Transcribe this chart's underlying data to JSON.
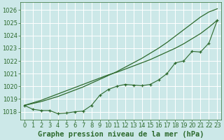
{
  "title": "Graphe pression niveau de la mer (hPa)",
  "bg_color": "#cce8e8",
  "grid_color": "#ffffff",
  "line_color": "#2d6a2d",
  "xlim": [
    -0.5,
    23.5
  ],
  "ylim": [
    1017.4,
    1026.6
  ],
  "xticks": [
    0,
    1,
    2,
    3,
    4,
    5,
    6,
    7,
    8,
    9,
    10,
    11,
    12,
    13,
    14,
    15,
    16,
    17,
    18,
    19,
    20,
    21,
    22,
    23
  ],
  "yticks": [
    1018,
    1019,
    1020,
    1021,
    1022,
    1023,
    1024,
    1025,
    1026
  ],
  "series_smooth1": [
    1018.5,
    1018.7,
    1018.9,
    1019.15,
    1019.4,
    1019.65,
    1019.9,
    1020.15,
    1020.4,
    1020.65,
    1020.9,
    1021.1,
    1021.35,
    1021.6,
    1021.85,
    1022.1,
    1022.4,
    1022.7,
    1023.0,
    1023.35,
    1023.75,
    1024.15,
    1024.65,
    1025.2
  ],
  "series_smooth2": [
    1018.5,
    1018.65,
    1018.8,
    1019.0,
    1019.2,
    1019.45,
    1019.7,
    1019.95,
    1020.25,
    1020.55,
    1020.85,
    1021.15,
    1021.5,
    1021.85,
    1022.2,
    1022.6,
    1023.0,
    1023.45,
    1023.95,
    1024.45,
    1024.95,
    1025.45,
    1025.85,
    1026.1
  ],
  "series_marked": [
    1018.5,
    1018.2,
    1018.1,
    1018.1,
    1017.85,
    1017.9,
    1018.0,
    1018.05,
    1018.5,
    1019.3,
    1019.75,
    1020.0,
    1020.15,
    1020.1,
    1020.05,
    1020.15,
    1020.5,
    1021.0,
    1021.85,
    1022.0,
    1022.75,
    1022.7,
    1023.4,
    1025.2
  ],
  "title_color": "#2d6a2d",
  "tick_color": "#2d6a2d",
  "tick_fontsize": 6.0,
  "title_fontsize": 7.5
}
